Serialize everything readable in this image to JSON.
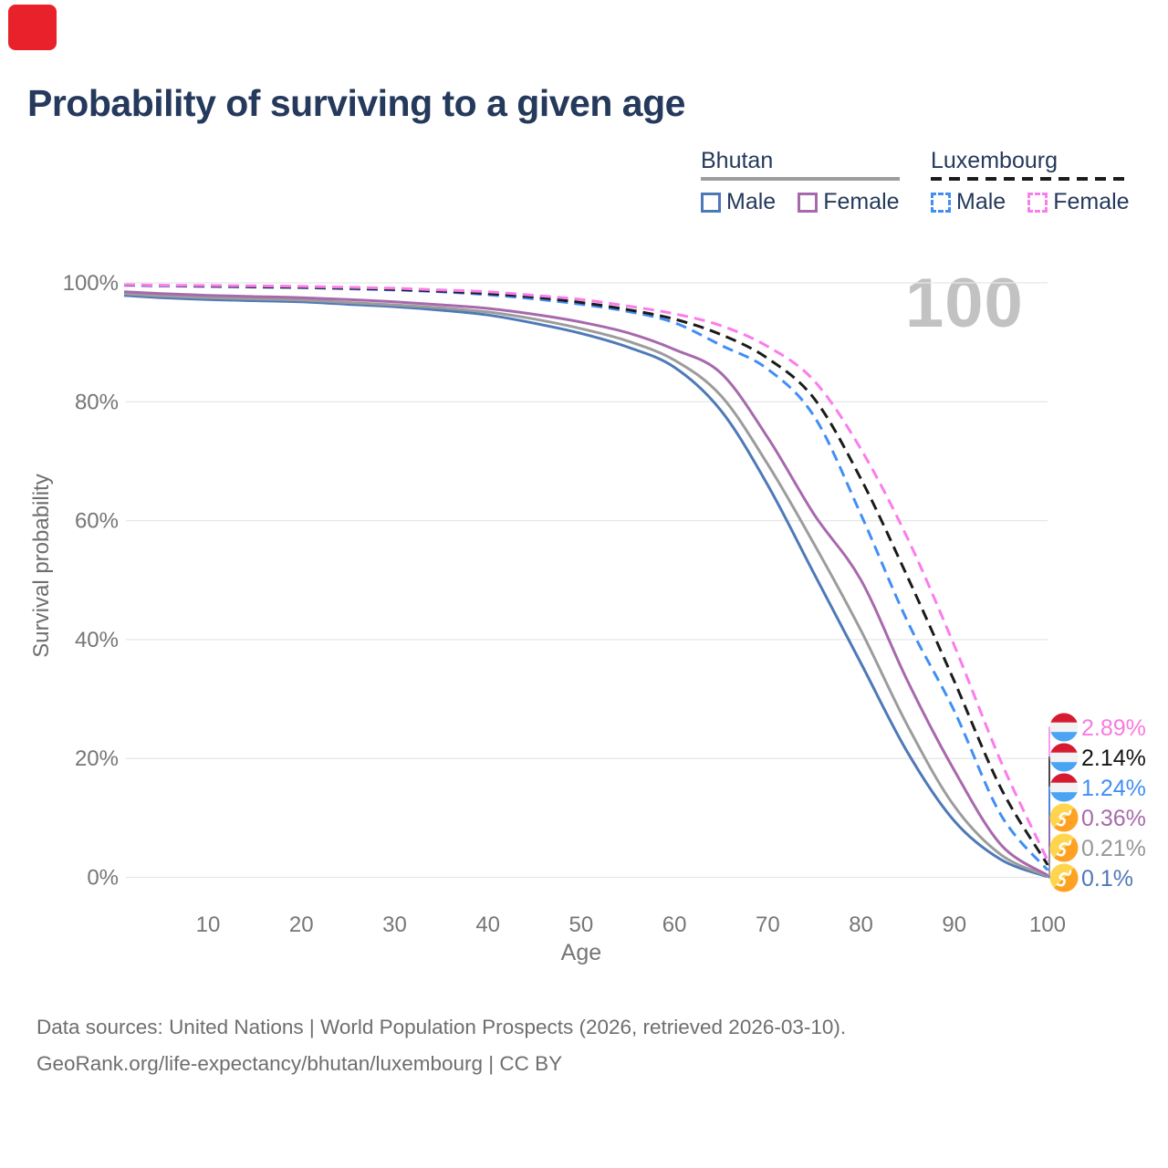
{
  "badge": {
    "color": "#e8212a"
  },
  "title": "Probability of surviving to a given age",
  "legend": {
    "groups": [
      {
        "label": "Bhutan",
        "style": "solid",
        "underline_color": "#9c9c9c",
        "items": [
          {
            "label": "Male",
            "color": "#4e79b8"
          },
          {
            "label": "Female",
            "color": "#a869ac"
          }
        ]
      },
      {
        "label": "Luxembourg",
        "style": "dashed",
        "underline_color": "#1b1b1b",
        "items": [
          {
            "label": "Male",
            "color": "#418ef5"
          },
          {
            "label": "Female",
            "color": "#fb7cec"
          }
        ]
      }
    ]
  },
  "watermark": "100",
  "chart_data": {
    "type": "line",
    "title": "Probability of surviving to a given age",
    "xlabel": "Age",
    "ylabel": "Survival probability",
    "xlim": [
      0,
      100
    ],
    "ylim": [
      0,
      100
    ],
    "grid": true,
    "legend_position": "top-right",
    "x_ticks": [
      10,
      20,
      30,
      40,
      50,
      60,
      70,
      80,
      90,
      100
    ],
    "y_ticks": [
      {
        "value": 100,
        "label": "100%"
      },
      {
        "value": 80,
        "label": "80%"
      },
      {
        "value": 60,
        "label": "60%"
      },
      {
        "value": 40,
        "label": "40%"
      },
      {
        "value": 20,
        "label": "20%"
      },
      {
        "value": 0,
        "label": "0%"
      }
    ],
    "ages": [
      1,
      5,
      10,
      15,
      20,
      25,
      30,
      35,
      40,
      45,
      50,
      55,
      60,
      65,
      70,
      75,
      80,
      85,
      90,
      95,
      100
    ],
    "series": [
      {
        "name": "Luxembourg Female",
        "country": "Luxembourg",
        "sex": "Female",
        "line": "dashed",
        "color": "#fb7cec",
        "label_color": "#f87ae1",
        "flag": "luxembourg",
        "end_label": "2.89%",
        "values": [
          99.7,
          99.6,
          99.55,
          99.5,
          99.4,
          99.25,
          99.1,
          98.8,
          98.5,
          97.9,
          97.2,
          96.1,
          94.8,
          92.8,
          89.3,
          83.5,
          72,
          57,
          39,
          19.5,
          2.89
        ]
      },
      {
        "name": "Luxembourg Total",
        "country": "Luxembourg",
        "sex": "Both",
        "line": "dashed",
        "color": "#1b1b1b",
        "label_color": "#141414",
        "flag": "luxembourg",
        "end_label": "2.14%",
        "values": [
          99.65,
          99.55,
          99.45,
          99.35,
          99.25,
          99.1,
          98.9,
          98.6,
          98.2,
          97.6,
          96.7,
          95.5,
          93.9,
          91.3,
          87.3,
          80.5,
          67,
          50.5,
          33,
          15,
          2.14
        ]
      },
      {
        "name": "Luxembourg Male",
        "country": "Luxembourg",
        "sex": "Male",
        "line": "dashed",
        "color": "#418ef5",
        "label_color": "#418ef5",
        "flag": "luxembourg",
        "end_label": "1.24%",
        "values": [
          99.6,
          99.5,
          99.4,
          99.3,
          99.2,
          99,
          98.8,
          98.5,
          98,
          97.3,
          96.4,
          95.2,
          93.3,
          89.5,
          85.5,
          77.5,
          61,
          43,
          28,
          10.5,
          1.24
        ]
      },
      {
        "name": "Bhutan Female",
        "country": "Bhutan",
        "sex": "Female",
        "line": "solid",
        "color": "#a869ac",
        "label_color": "#a869ac",
        "flag": "bhutan",
        "end_label": "0.36%",
        "values": [
          98.5,
          98.2,
          97.9,
          97.7,
          97.5,
          97.2,
          96.8,
          96.3,
          95.7,
          94.7,
          93.4,
          91.6,
          88.8,
          84.8,
          74,
          61,
          50,
          33,
          18,
          5.5,
          0.36
        ]
      },
      {
        "name": "Bhutan Total",
        "country": "Bhutan",
        "sex": "Both",
        "line": "solid",
        "color": "#9c9c9c",
        "label_color": "#979797",
        "flag": "bhutan",
        "end_label": "0.21%",
        "values": [
          98.2,
          97.8,
          97.5,
          97.3,
          97.1,
          96.7,
          96.3,
          95.8,
          95.1,
          93.9,
          92.3,
          90.2,
          87,
          81,
          69.5,
          56,
          41.5,
          25.5,
          12,
          3.8,
          0.21
        ]
      },
      {
        "name": "Bhutan Male",
        "country": "Bhutan",
        "sex": "Male",
        "line": "solid",
        "color": "#4e79b8",
        "label_color": "#4e79b8",
        "flag": "bhutan",
        "end_label": "0.1%",
        "values": [
          97.9,
          97.5,
          97.2,
          97,
          96.8,
          96.4,
          96,
          95.4,
          94.6,
          93.2,
          91.5,
          89.2,
          85.8,
          78.5,
          66,
          51,
          36,
          21,
          9.5,
          3,
          0.1
        ]
      }
    ]
  },
  "footer": {
    "line1": "Data sources: United Nations | World Population Prospects (2026, retrieved 2026-03-10).",
    "line2": "GeoRank.org/life-expectancy/bhutan/luxembourg | CC BY"
  }
}
